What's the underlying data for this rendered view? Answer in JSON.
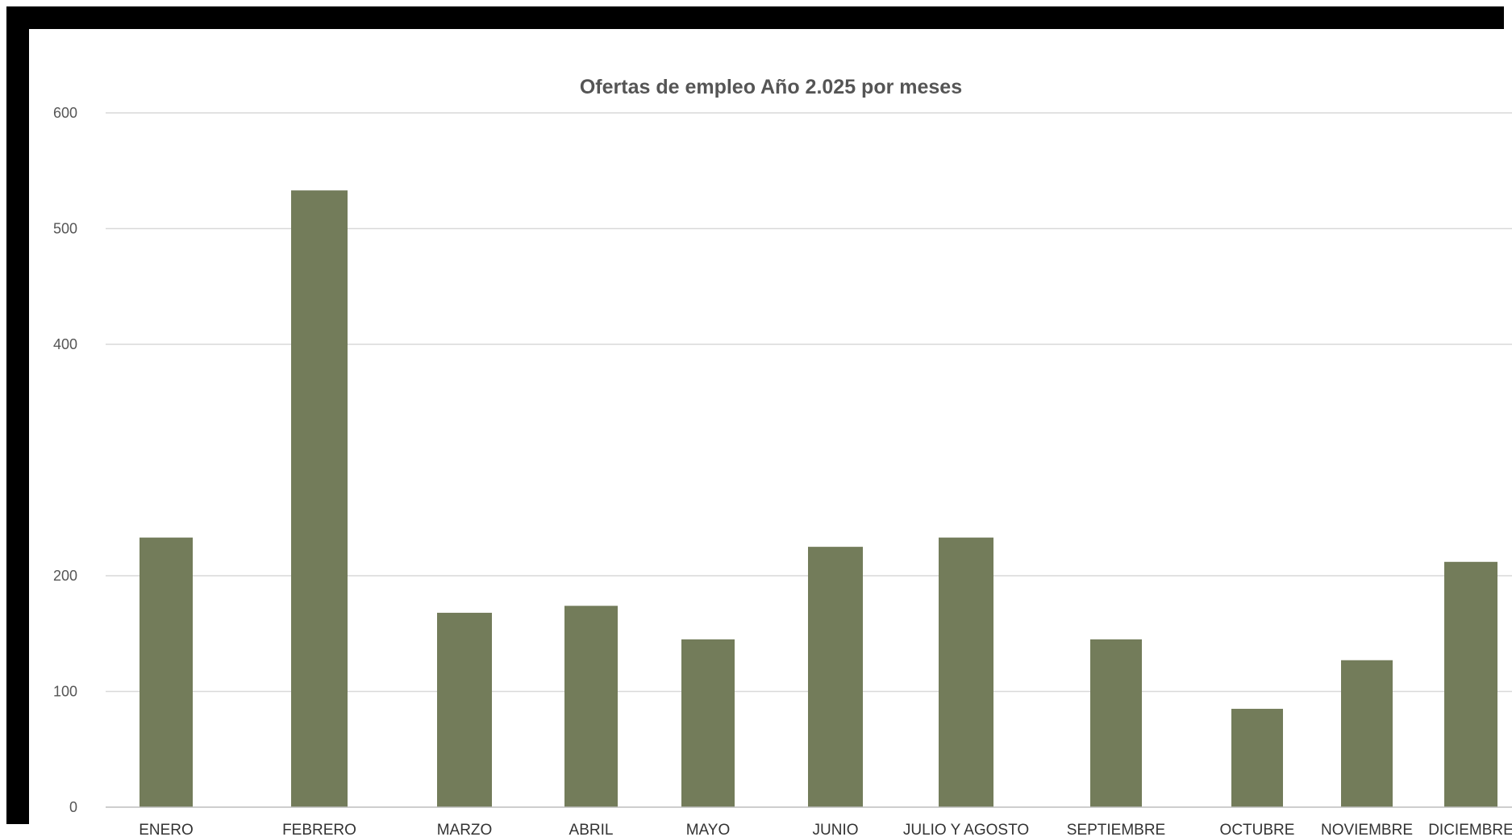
{
  "chart_data": {
    "type": "bar",
    "title": "Ofertas de empleo Año 2.025 por meses",
    "xlabel": "",
    "ylabel": "",
    "categories": [
      "ENERO",
      "FEBRERO",
      "MARZO",
      "ABRIL",
      "MAYO",
      "JUNIO",
      "JULIO Y AGOSTO",
      "SEPTIEMBRE",
      "OCTUBRE",
      "NOVIEMBRE",
      "DICIEMBRE"
    ],
    "values": [
      233,
      533,
      168,
      174,
      145,
      225,
      233,
      145,
      85,
      127,
      212
    ],
    "ylim": [
      0,
      600
    ],
    "yticks": [
      "0",
      "100",
      "200",
      "400",
      "500",
      "600"
    ],
    "ytick_values": [
      0,
      100,
      200,
      400,
      500,
      600
    ],
    "grid": true,
    "legend": "none",
    "bar_color": "#737c5a",
    "grid_color": "#d9d9d9",
    "frame_color": "#000000"
  }
}
